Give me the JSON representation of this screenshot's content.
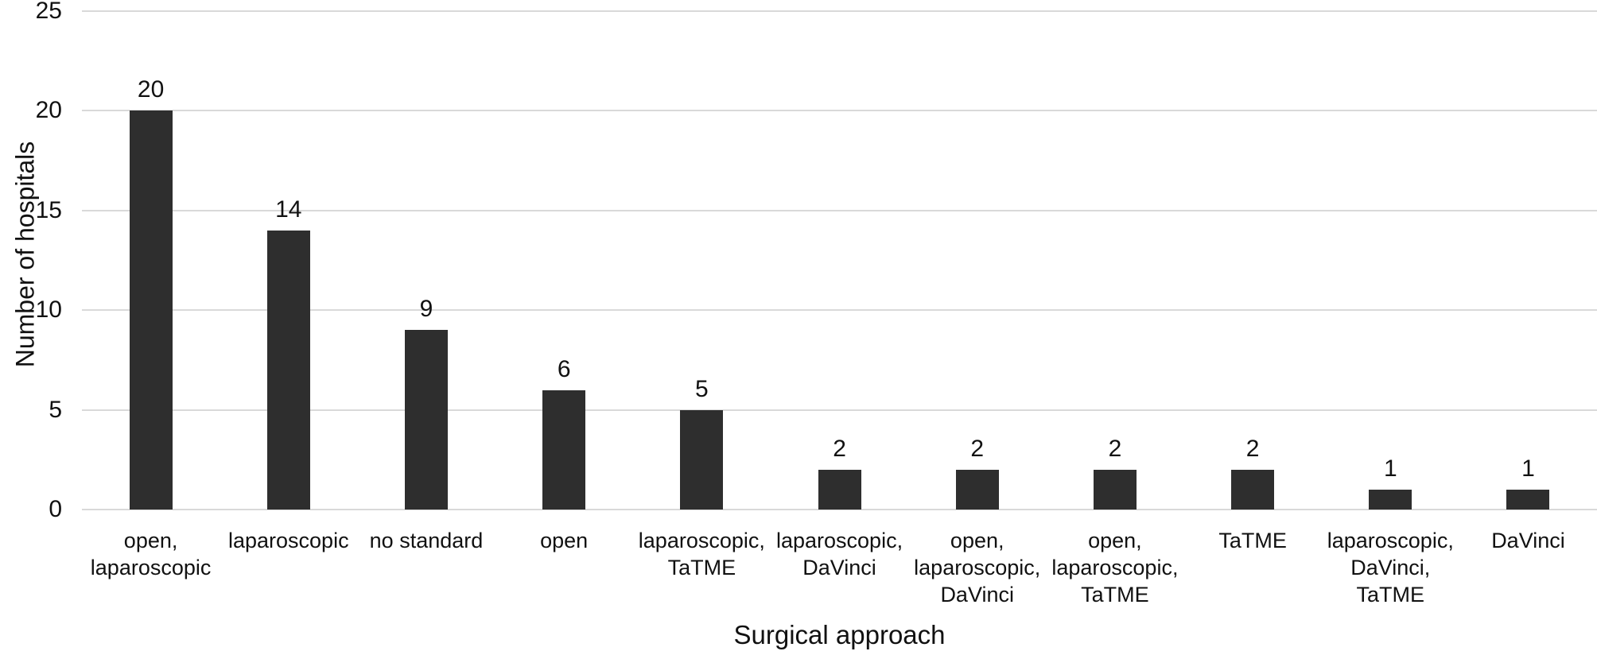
{
  "chart_data": {
    "type": "bar",
    "title": "",
    "xlabel": "Surgical approach",
    "ylabel": "Number of hospitals",
    "categories": [
      "open,\nlaparoscopic",
      "laparoscopic",
      "no standard",
      "open",
      "laparoscopic,\nTaTME",
      "laparoscopic,\nDaVinci",
      "open,\nlaparoscopic,\nDaVinci",
      "open,\nlaparoscopic,\nTaTME",
      "TaTME",
      "laparoscopic,\nDaVinci,\nTaTME",
      "DaVinci"
    ],
    "values": [
      20,
      14,
      9,
      6,
      5,
      2,
      2,
      2,
      2,
      1,
      1
    ],
    "ylim": [
      0,
      25
    ],
    "yticks": [
      0,
      5,
      10,
      15,
      20,
      25
    ],
    "grid": true,
    "legend": "none",
    "bar_color": "#2e2e2e",
    "gridline_color": "#d9d9d9",
    "text_color": "#111111",
    "background_color": "#ffffff"
  }
}
